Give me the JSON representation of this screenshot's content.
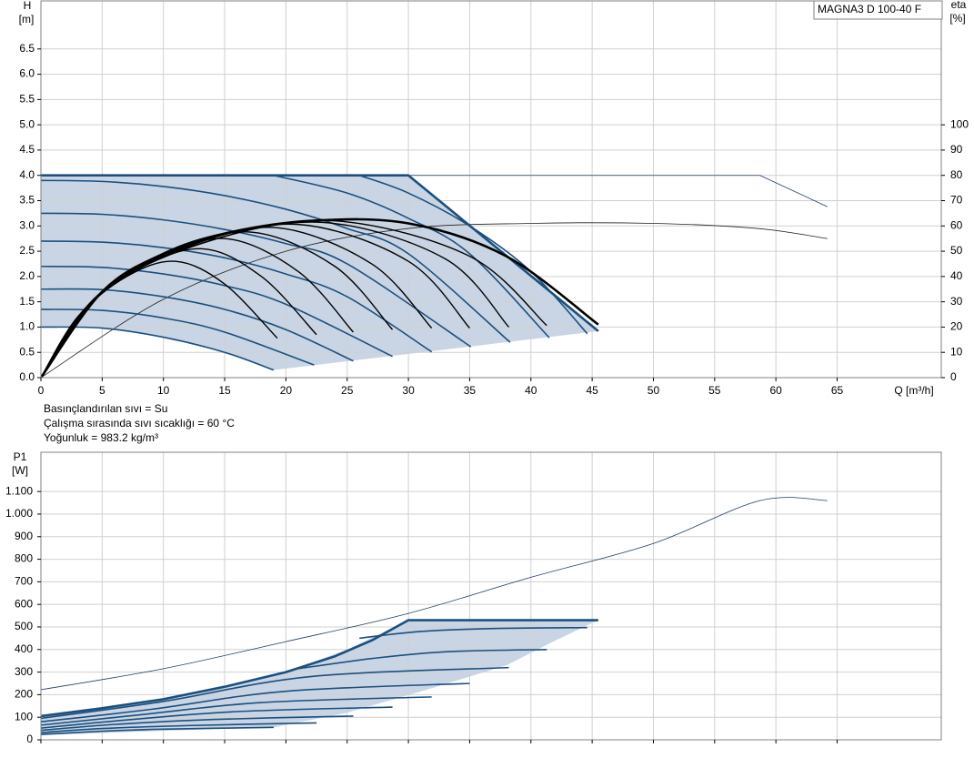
{
  "chart_data": [
    {
      "type": "line",
      "title": "MAGNA3 D 100-40 F",
      "annotations": [
        "Basınçlandırılan sıvı = Su",
        "Çalışma sırasında sıvı sıcaklığı = 60 °C",
        "Yoğunluk = 983.2 kg/m³"
      ],
      "y_label": "H",
      "y_unit": "[m]",
      "y2_label": "eta",
      "y2_unit": "[%]",
      "x_label": "Q [m³/h]",
      "xlim": [
        0,
        73.5
      ],
      "xticks": [
        0,
        5,
        10,
        15,
        20,
        25,
        30,
        35,
        40,
        45,
        50,
        55,
        60,
        65
      ],
      "xtick_labels": true,
      "ylim": [
        0,
        7.45
      ],
      "yticks": [
        {
          "value": 0,
          "label": "0.0"
        },
        0.5,
        {
          "value": 1,
          "label": "1.0"
        },
        1.5,
        {
          "value": 2,
          "label": "2.0"
        },
        2.5,
        {
          "value": 3,
          "label": "3.0"
        },
        3.5,
        {
          "value": 4,
          "label": "4.0"
        },
        4.5,
        {
          "value": 5,
          "label": "5.0"
        },
        5.5,
        {
          "value": 6,
          "label": "6.0"
        },
        6.5
      ],
      "y2lim": [
        0,
        149
      ],
      "y2ticks": [
        0,
        10,
        20,
        30,
        40,
        50,
        60,
        70,
        80,
        90,
        100
      ],
      "grid": true,
      "series": [
        {
          "type": "area",
          "color": "#c9d5e5",
          "x": [
            0,
            30,
            45.5,
            19,
            15,
            10,
            5,
            0
          ],
          "y": [
            4,
            4,
            0.92,
            0.15,
            0.5,
            0.8,
            0.98,
            1.0
          ]
        },
        {
          "type": "line",
          "color": "#1b3f66",
          "width": 0.8,
          "smooth": false,
          "x": [
            0,
            58.7,
            64.2
          ],
          "y": [
            4,
            4,
            3.38
          ]
        },
        {
          "type": "line",
          "color": "#222222",
          "width": 0.8,
          "smooth": true,
          "axis": "y2",
          "x": [
            0,
            10,
            20,
            30,
            40,
            50,
            58.5,
            64.2
          ],
          "y": [
            0,
            31,
            50,
            59,
            61,
            61,
            59,
            55
          ]
        },
        {
          "type": "line",
          "color": "#1b4f7e",
          "width": 1.6,
          "smooth": true,
          "x": [
            0,
            5,
            10,
            15,
            19
          ],
          "y": [
            1.0,
            0.98,
            0.8,
            0.5,
            0.15
          ]
        },
        {
          "type": "line",
          "color": "#1b4f7e",
          "width": 1.6,
          "smooth": true,
          "x": [
            0,
            5,
            10,
            15,
            22.3
          ],
          "y": [
            1.35,
            1.33,
            1.18,
            0.9,
            0.25
          ]
        },
        {
          "type": "line",
          "color": "#1b4f7e",
          "width": 1.6,
          "smooth": true,
          "x": [
            0,
            5,
            10,
            15,
            20,
            25.5
          ],
          "y": [
            1.75,
            1.74,
            1.6,
            1.35,
            0.95,
            0.33
          ]
        },
        {
          "type": "line",
          "color": "#1b4f7e",
          "width": 1.6,
          "smooth": true,
          "x": [
            0,
            5,
            10,
            15,
            20,
            28.7
          ],
          "y": [
            2.2,
            2.18,
            2.05,
            1.82,
            1.45,
            0.42
          ]
        },
        {
          "type": "line",
          "color": "#1b4f7e",
          "width": 1.6,
          "smooth": true,
          "x": [
            0,
            5,
            10,
            15,
            20,
            25,
            31.9
          ],
          "y": [
            2.7,
            2.68,
            2.57,
            2.37,
            2.05,
            1.6,
            0.51
          ]
        },
        {
          "type": "line",
          "color": "#1b4f7e",
          "width": 1.6,
          "smooth": true,
          "x": [
            0,
            5,
            10,
            15,
            20,
            25,
            35.1
          ],
          "y": [
            3.25,
            3.23,
            3.12,
            2.93,
            2.65,
            2.25,
            0.61
          ]
        },
        {
          "type": "line",
          "color": "#1b4f7e",
          "width": 1.6,
          "smooth": true,
          "x": [
            0,
            5,
            10,
            15,
            20,
            25,
            30,
            38.3
          ],
          "y": [
            3.9,
            3.88,
            3.78,
            3.6,
            3.33,
            2.95,
            2.45,
            0.7
          ]
        },
        {
          "type": "line",
          "color": "#1b4f7e",
          "width": 1.6,
          "smooth": true,
          "x": [
            19,
            25,
            30,
            35,
            41.5
          ],
          "y": [
            4.0,
            3.65,
            3.15,
            2.45,
            0.79
          ]
        },
        {
          "type": "line",
          "color": "#1b4f7e",
          "width": 1.6,
          "smooth": true,
          "x": [
            26,
            30,
            35,
            40,
            44.6
          ],
          "y": [
            4.0,
            3.65,
            3.0,
            2.1,
            0.87
          ]
        },
        {
          "type": "line",
          "color": "#1b4f7e",
          "width": 2.6,
          "smooth": false,
          "x": [
            0,
            30,
            45.5
          ],
          "y": [
            4,
            4,
            0.92
          ]
        },
        {
          "type": "line",
          "color": "#000000",
          "width": 1.4,
          "smooth": true,
          "x": [
            0,
            3,
            7,
            11,
            15,
            19.3
          ],
          "y": [
            0,
            1.2,
            2.0,
            2.3,
            1.85,
            0.78
          ]
        },
        {
          "type": "line",
          "color": "#000000",
          "width": 1.4,
          "smooth": true,
          "x": [
            0,
            3,
            7,
            13,
            18,
            22.5
          ],
          "y": [
            0,
            1.2,
            2.05,
            2.55,
            2.0,
            0.85
          ]
        },
        {
          "type": "line",
          "color": "#000000",
          "width": 1.4,
          "smooth": true,
          "x": [
            0,
            4,
            9,
            15,
            21,
            25.5
          ],
          "y": [
            0,
            1.45,
            2.3,
            2.75,
            2.1,
            0.9
          ]
        },
        {
          "type": "line",
          "color": "#000000",
          "width": 1.4,
          "smooth": true,
          "x": [
            0,
            4,
            10,
            17,
            24,
            28.7
          ],
          "y": [
            0,
            1.45,
            2.4,
            2.88,
            2.2,
            0.95
          ]
        },
        {
          "type": "line",
          "color": "#000000",
          "width": 1.4,
          "smooth": true,
          "x": [
            0,
            5,
            11,
            19,
            27,
            31.9
          ],
          "y": [
            0,
            1.7,
            2.5,
            2.97,
            2.25,
            0.98
          ]
        },
        {
          "type": "line",
          "color": "#000000",
          "width": 1.4,
          "smooth": true,
          "x": [
            0,
            5,
            12,
            21,
            30,
            35
          ],
          "y": [
            0,
            1.7,
            2.6,
            3.03,
            2.3,
            0.98
          ]
        },
        {
          "type": "line",
          "color": "#000000",
          "width": 1.4,
          "smooth": true,
          "x": [
            0,
            5,
            13,
            23,
            33,
            38.2
          ],
          "y": [
            0,
            1.7,
            2.65,
            3.07,
            2.35,
            1.0
          ]
        },
        {
          "type": "line",
          "color": "#000000",
          "width": 1.4,
          "smooth": true,
          "x": [
            0,
            5,
            14,
            24,
            35,
            41.3
          ],
          "y": [
            0,
            1.7,
            2.72,
            3.1,
            2.4,
            1.03
          ]
        },
        {
          "type": "line",
          "color": "#000000",
          "width": 2.6,
          "smooth": true,
          "x": [
            0,
            5,
            10,
            15,
            22,
            30,
            38,
            45.5
          ],
          "y": [
            0,
            1.7,
            2.45,
            2.85,
            3.1,
            3.05,
            2.4,
            1.05
          ]
        }
      ]
    },
    {
      "type": "line",
      "y_label": "P1",
      "y_unit": "[W]",
      "xlim": [
        0,
        73.5
      ],
      "xticks": [
        0,
        5,
        10,
        15,
        20,
        25,
        30,
        35,
        40,
        45,
        50,
        55,
        60,
        65
      ],
      "xtick_labels": false,
      "ylim": [
        0,
        1274
      ],
      "yticks": [
        0,
        100,
        200,
        300,
        400,
        500,
        600,
        700,
        800,
        900,
        {
          "value": 1000,
          "label": "1.000"
        },
        {
          "value": 1100,
          "label": "1.100"
        }
      ],
      "grid": true,
      "series": [
        {
          "type": "area",
          "color": "#c9d5e5",
          "x": [
            0,
            10,
            20,
            25,
            30,
            45.5,
            42,
            38,
            32,
            25,
            19,
            10,
            0
          ],
          "y": [
            105,
            180,
            300,
            400,
            530,
            530,
            440,
            330,
            230,
            120,
            55,
            40,
            20
          ]
        },
        {
          "type": "line",
          "color": "#1b3f66",
          "width": 0.8,
          "smooth": true,
          "x": [
            0,
            10,
            20,
            30,
            40,
            50,
            58.7,
            64.2
          ],
          "y": [
            222,
            315,
            435,
            560,
            720,
            870,
            1060,
            1060
          ]
        },
        {
          "type": "line",
          "color": "#1b4f7e",
          "width": 1.6,
          "smooth": true,
          "x": [
            0,
            5,
            10,
            19
          ],
          "y": [
            24,
            38,
            47,
            55
          ]
        },
        {
          "type": "line",
          "color": "#1b4f7e",
          "width": 1.6,
          "smooth": true,
          "x": [
            0,
            5,
            12,
            22.5
          ],
          "y": [
            32,
            50,
            63,
            75
          ]
        },
        {
          "type": "line",
          "color": "#1b4f7e",
          "width": 1.6,
          "smooth": true,
          "x": [
            0,
            6,
            14,
            25.5
          ],
          "y": [
            42,
            68,
            90,
            105
          ]
        },
        {
          "type": "line",
          "color": "#1b4f7e",
          "width": 1.6,
          "smooth": true,
          "x": [
            0,
            7,
            16,
            28.7
          ],
          "y": [
            52,
            88,
            125,
            145
          ]
        },
        {
          "type": "line",
          "color": "#1b4f7e",
          "width": 1.6,
          "smooth": true,
          "x": [
            0,
            8,
            18,
            31.9
          ],
          "y": [
            65,
            110,
            165,
            190
          ]
        },
        {
          "type": "line",
          "color": "#1b4f7e",
          "width": 1.6,
          "smooth": true,
          "x": [
            0,
            9,
            20,
            35
          ],
          "y": [
            80,
            135,
            215,
            250
          ]
        },
        {
          "type": "line",
          "color": "#1b4f7e",
          "width": 1.6,
          "smooth": true,
          "x": [
            0,
            10,
            22,
            38.2
          ],
          "y": [
            95,
            170,
            280,
            320
          ]
        },
        {
          "type": "line",
          "color": "#1b4f7e",
          "width": 1.6,
          "smooth": true,
          "x": [
            21,
            27,
            33,
            41.3
          ],
          "y": [
            315,
            360,
            390,
            400
          ]
        },
        {
          "type": "line",
          "color": "#1b4f7e",
          "width": 1.6,
          "smooth": true,
          "x": [
            26,
            31,
            37,
            44.6
          ],
          "y": [
            450,
            480,
            493,
            497
          ]
        },
        {
          "type": "line",
          "color": "#1b4f7e",
          "width": 2.6,
          "smooth": false,
          "x": [
            0,
            5,
            10,
            15,
            20,
            24,
            27,
            30,
            45.5
          ],
          "y": [
            105,
            140,
            180,
            235,
            300,
            370,
            440,
            530,
            530
          ]
        }
      ]
    }
  ]
}
